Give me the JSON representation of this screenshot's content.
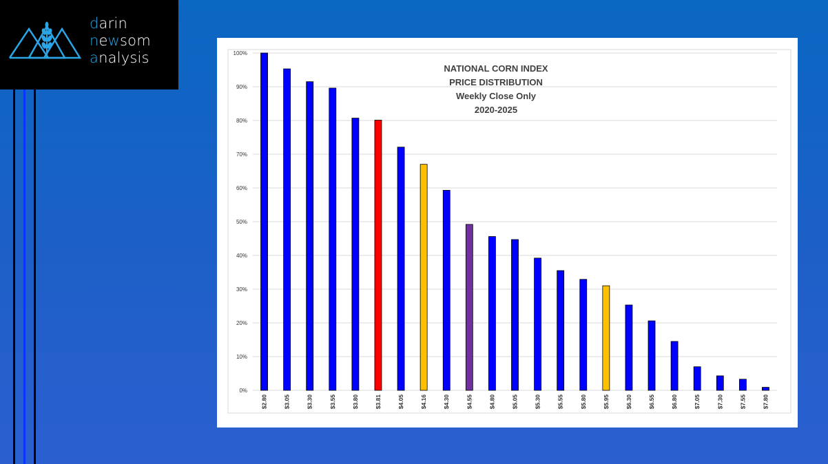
{
  "logo": {
    "line1_first": "d",
    "line1_rest": "arin",
    "line2_first": "n",
    "line2_mid": "e",
    "line2_accent": "w",
    "line2_rest": "som",
    "line3_first": "a",
    "line3_rest": "nalysis",
    "icon": "wheat-mountains-icon",
    "accent_color": "#2aa6e6"
  },
  "chart_data": {
    "type": "bar",
    "title_lines": [
      "NATIONAL CORN INDEX",
      "PRICE DISTRIBUTION",
      "Weekly Close Only",
      "2020-2025"
    ],
    "categories": [
      "$2.80",
      "$3.05",
      "$3.30",
      "$3.55",
      "$3.80",
      "$3.81",
      "$4.05",
      "$4.16",
      "$4.30",
      "$4.55",
      "$4.80",
      "$5.05",
      "$5.30",
      "$5.55",
      "$5.80",
      "$5.95",
      "$6.30",
      "$6.55",
      "$6.80",
      "$7.05",
      "$7.30",
      "$7.55",
      "$7.80"
    ],
    "values": [
      100,
      95.3,
      91.5,
      89.6,
      80.7,
      80.1,
      72.1,
      67.0,
      59.3,
      49.2,
      45.6,
      44.7,
      39.2,
      35.5,
      32.9,
      31.0,
      25.3,
      20.6,
      14.5,
      7.0,
      4.3,
      3.3,
      0.9
    ],
    "colors": [
      "#0000ff",
      "#0000ff",
      "#0000ff",
      "#0000ff",
      "#0000ff",
      "#ff0000",
      "#0000ff",
      "#ffc000",
      "#0000ff",
      "#7030a0",
      "#0000ff",
      "#0000ff",
      "#0000ff",
      "#0000ff",
      "#0000ff",
      "#ffc000",
      "#0000ff",
      "#0000ff",
      "#0000ff",
      "#0000ff",
      "#0000ff",
      "#0000ff",
      "#0000ff"
    ],
    "yticks": [
      "0%",
      "10%",
      "20%",
      "30%",
      "40%",
      "50%",
      "60%",
      "70%",
      "80%",
      "90%",
      "100%"
    ],
    "ylim": [
      0,
      100
    ],
    "xlabel": "",
    "ylabel": "",
    "grid": true
  }
}
